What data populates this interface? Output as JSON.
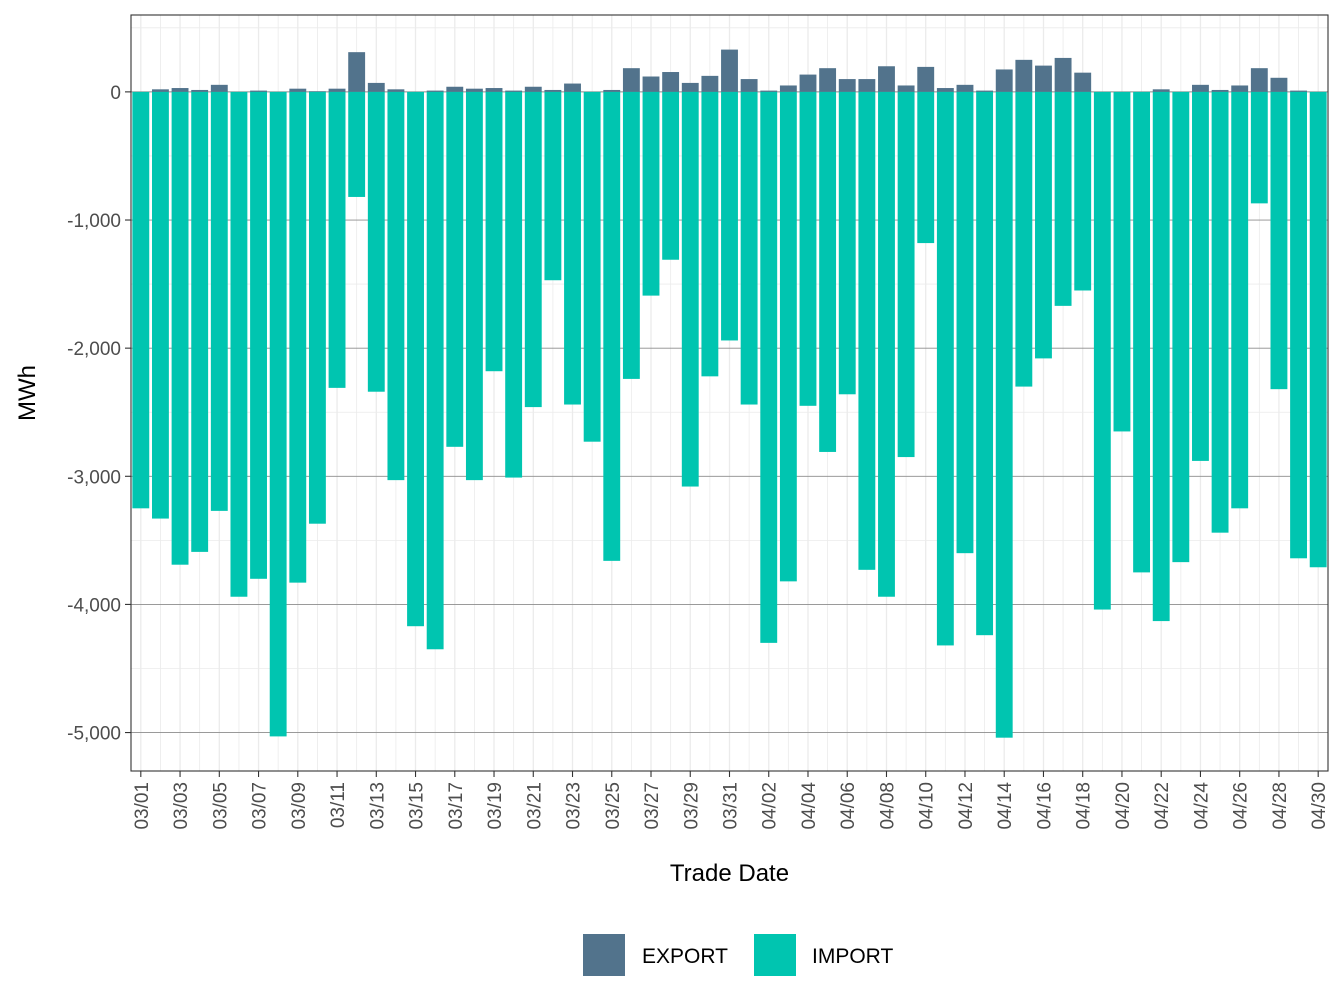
{
  "chart_data": {
    "type": "bar",
    "stacking": "diverging",
    "xlabel": "Trade Date",
    "ylabel": "MWh",
    "ylim": [
      -5300,
      600
    ],
    "yticks": [
      0,
      -1000,
      -2000,
      -3000,
      -4000,
      -5000
    ],
    "ytick_labels": [
      "0",
      "-1,000",
      "-2,000",
      "-3,000",
      "-4,000",
      "-5,000"
    ],
    "grid": true,
    "legend_position": "bottom",
    "categories": [
      "03/01",
      "03/02",
      "03/03",
      "03/04",
      "03/05",
      "03/06",
      "03/07",
      "03/08",
      "03/09",
      "03/10",
      "03/11",
      "03/12",
      "03/13",
      "03/14",
      "03/15",
      "03/16",
      "03/17",
      "03/18",
      "03/19",
      "03/20",
      "03/21",
      "03/22",
      "03/23",
      "03/24",
      "03/25",
      "03/26",
      "03/27",
      "03/28",
      "03/29",
      "03/30",
      "03/31",
      "04/01",
      "04/02",
      "04/03",
      "04/04",
      "04/05",
      "04/06",
      "04/07",
      "04/08",
      "04/09",
      "04/10",
      "04/11",
      "04/12",
      "04/13",
      "04/14",
      "04/15",
      "04/16",
      "04/17",
      "04/18",
      "04/19",
      "04/20",
      "04/21",
      "04/22",
      "04/23",
      "04/24",
      "04/25",
      "04/26",
      "04/27",
      "04/28",
      "04/29",
      "04/30"
    ],
    "xtick_labels": [
      "03/01",
      "03/03",
      "03/05",
      "03/07",
      "03/09",
      "03/11",
      "03/13",
      "03/15",
      "03/17",
      "03/19",
      "03/21",
      "03/23",
      "03/25",
      "03/27",
      "03/29",
      "03/31",
      "04/02",
      "04/04",
      "04/06",
      "04/08",
      "04/10",
      "04/12",
      "04/14",
      "04/16",
      "04/18",
      "04/20",
      "04/22",
      "04/24",
      "04/26",
      "04/28",
      "04/30"
    ],
    "series": [
      {
        "name": "EXPORT",
        "color": "#52738c",
        "values": [
          0,
          20,
          30,
          15,
          55,
          0,
          10,
          0,
          25,
          5,
          25,
          310,
          70,
          20,
          0,
          10,
          40,
          25,
          30,
          10,
          40,
          15,
          65,
          0,
          15,
          185,
          120,
          155,
          70,
          125,
          330,
          100,
          10,
          50,
          135,
          185,
          100,
          100,
          200,
          50,
          195,
          30,
          55,
          10,
          175,
          250,
          205,
          265,
          150,
          0,
          0,
          0,
          20,
          0,
          55,
          15,
          50,
          185,
          110,
          10,
          0
        ]
      },
      {
        "name": "IMPORT",
        "color": "#00c5b0",
        "values": [
          -3250,
          -3330,
          -3690,
          -3590,
          -3270,
          -3940,
          -3800,
          -5030,
          -3830,
          -3370,
          -2310,
          -820,
          -2340,
          -3030,
          -4170,
          -4350,
          -2770,
          -3030,
          -2180,
          -3010,
          -2460,
          -1470,
          -2440,
          -2730,
          -3660,
          -2240,
          -1590,
          -1310,
          -3080,
          -2220,
          -1940,
          -2440,
          -4300,
          -3820,
          -2450,
          -2810,
          -2360,
          -3730,
          -3940,
          -2850,
          -1180,
          -4320,
          -3600,
          -4240,
          -5040,
          -2300,
          -2080,
          -1670,
          -1550,
          -4040,
          -2650,
          -3750,
          -4130,
          -3670,
          -2880,
          -3440,
          -3250,
          -870,
          -2320,
          -3640,
          -3710
        ]
      }
    ]
  }
}
